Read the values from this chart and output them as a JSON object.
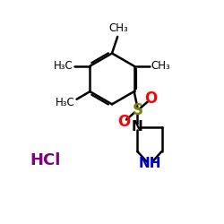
{
  "bg_color": "#ffffff",
  "bond_color": "#000000",
  "S_color": "#808000",
  "O_color": "#ff0000",
  "N_color": "#0000cd",
  "N_top_color": "#000000",
  "HCl_color": "#800080",
  "HCl_text": "HCl",
  "CH3_top": "CH₃",
  "CH3_right": "CH₃",
  "H3C_left": "H₃C",
  "H3C_bottom_left": "H₃C",
  "S_label": "S",
  "N_top_label": "N",
  "NH_label": "NH",
  "figsize": [
    2.5,
    2.5
  ],
  "dpi": 100
}
